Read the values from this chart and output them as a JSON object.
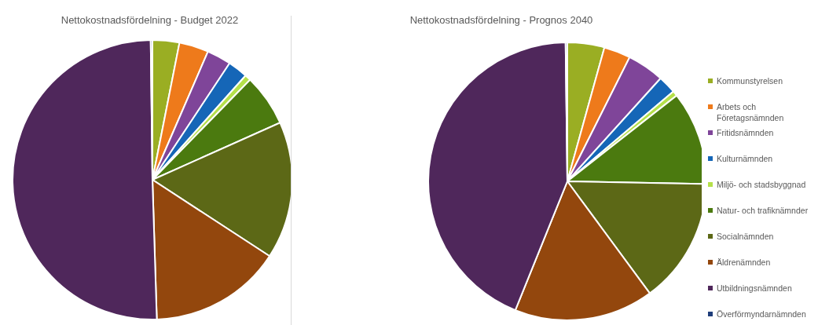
{
  "chart_data": [
    {
      "type": "pie",
      "title": "Nettokostnadsfördelning  - Budget 2022",
      "legend": false,
      "categories": [
        null,
        null,
        null,
        null,
        null,
        null,
        null,
        null,
        null,
        null
      ],
      "values": [
        3.1,
        3.4,
        2.8,
        2.3,
        0.7,
        6.0,
        15.9,
        15.3,
        50.3,
        0.2
      ],
      "colors": [
        "#9aae23",
        "#ee7a1b",
        "#7f4599",
        "#1566b7",
        "#b5e04a",
        "#4b7a0f",
        "#5c6816",
        "#93470d",
        "#4f275b",
        "#1f3d7a"
      ]
    },
    {
      "type": "pie",
      "title": "Nettokostnadsfördelning - Prognos 2040",
      "legend": "right",
      "categories": [
        "Kommunstyrelsen",
        "Arbets och Företagsnämnden",
        "Fritidsnämnden",
        "Kulturnämnden",
        "Miljö- och stadsbyggnad",
        "Natur- och trafiknämnder",
        "Socialnämnden",
        "Äldrenämnden",
        "Utbildningsnämnden",
        "Överförmyndarnämnden"
      ],
      "values": [
        4.3,
        3.1,
        4.3,
        2.1,
        0.6,
        10.9,
        14.6,
        16.2,
        43.7,
        0.2
      ],
      "colors": [
        "#9aae23",
        "#ee7a1b",
        "#7f4599",
        "#1566b7",
        "#b5e04a",
        "#4b7a0f",
        "#5c6816",
        "#93470d",
        "#4f275b",
        "#1f3d7a"
      ]
    }
  ]
}
